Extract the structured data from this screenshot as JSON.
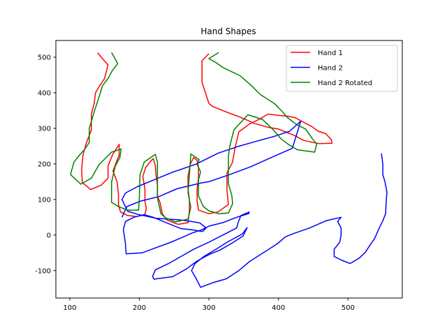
{
  "chart_data": {
    "type": "line",
    "title": "Hand Shapes",
    "xlabel": "",
    "ylabel": "",
    "xlim": [
      80,
      578
    ],
    "ylim": [
      -177,
      547
    ],
    "xticks": [
      100,
      200,
      300,
      400,
      500
    ],
    "yticks": [
      -100,
      0,
      100,
      200,
      300,
      400,
      500
    ],
    "grid": false,
    "legend_position": "upper right",
    "series": [
      {
        "name": "Hand 1",
        "color": "#ff0000",
        "points": [
          [
            140,
            512
          ],
          [
            155,
            478
          ],
          [
            150,
            440
          ],
          [
            143,
            420
          ],
          [
            137,
            400
          ],
          [
            135,
            370
          ],
          [
            131,
            340
          ],
          [
            131,
            295
          ],
          [
            124,
            260
          ],
          [
            119,
            225
          ],
          [
            117,
            185
          ],
          [
            118,
            148
          ],
          [
            130,
            128
          ],
          [
            145,
            140
          ],
          [
            155,
            160
          ],
          [
            155,
            195
          ],
          [
            162,
            228
          ],
          [
            166,
            240
          ],
          [
            171,
            255
          ],
          [
            171,
            225
          ],
          [
            168,
            210
          ],
          [
            162,
            180
          ],
          [
            168,
            150
          ],
          [
            170,
            115
          ],
          [
            170,
            85
          ],
          [
            173,
            65
          ],
          [
            183,
            55
          ],
          [
            196,
            52
          ],
          [
            208,
            58
          ],
          [
            210,
            75
          ],
          [
            208,
            95
          ],
          [
            208,
            130
          ],
          [
            205,
            165
          ],
          [
            209,
            190
          ],
          [
            215,
            205
          ],
          [
            220,
            215
          ],
          [
            223,
            195
          ],
          [
            224,
            170
          ],
          [
            226,
            140
          ],
          [
            226,
            110
          ],
          [
            230,
            90
          ],
          [
            233,
            60
          ],
          [
            240,
            42
          ],
          [
            256,
            30
          ],
          [
            270,
            35
          ],
          [
            272,
            70
          ],
          [
            272,
            100
          ],
          [
            270,
            130
          ],
          [
            270,
            165
          ],
          [
            273,
            198
          ],
          [
            278,
            218
          ],
          [
            283,
            210
          ],
          [
            285,
            190
          ],
          [
            285,
            160
          ],
          [
            283,
            130
          ],
          [
            283,
            95
          ],
          [
            285,
            70
          ],
          [
            300,
            60
          ],
          [
            313,
            65
          ],
          [
            328,
            86
          ],
          [
            326,
            125
          ],
          [
            326,
            175
          ],
          [
            334,
            205
          ],
          [
            337,
            240
          ],
          [
            343,
            290
          ],
          [
            358,
            312
          ],
          [
            372,
            325
          ],
          [
            385,
            340
          ],
          [
            402,
            336
          ],
          [
            414,
            334
          ],
          [
            424,
            330
          ],
          [
            436,
            317
          ],
          [
            448,
            305
          ],
          [
            457,
            292
          ],
          [
            468,
            285
          ],
          [
            476,
            268
          ],
          [
            477,
            258
          ],
          [
            458,
            257
          ],
          [
            436,
            266
          ],
          [
            423,
            280
          ],
          [
            410,
            290
          ],
          [
            400,
            298
          ],
          [
            385,
            303
          ],
          [
            365,
            314
          ],
          [
            355,
            323
          ],
          [
            343,
            333
          ],
          [
            333,
            340
          ],
          [
            320,
            350
          ],
          [
            305,
            362
          ],
          [
            300,
            370
          ],
          [
            295,
            400
          ],
          [
            290,
            430
          ],
          [
            290,
            460
          ],
          [
            290,
            490
          ],
          [
            300,
            510
          ]
        ]
      },
      {
        "name": "Hand 2",
        "color": "#0000ff",
        "points": [
          [
            175,
            50
          ],
          [
            182,
            80
          ],
          [
            201,
            95
          ],
          [
            228,
            108
          ],
          [
            254,
            130
          ],
          [
            288,
            146
          ],
          [
            300,
            150
          ],
          [
            330,
            170
          ],
          [
            360,
            192
          ],
          [
            392,
            220
          ],
          [
            420,
            244
          ],
          [
            432,
            320
          ],
          [
            416,
            292
          ],
          [
            395,
            278
          ],
          [
            365,
            262
          ],
          [
            340,
            248
          ],
          [
            313,
            230
          ],
          [
            282,
            200
          ],
          [
            247,
            176
          ],
          [
            222,
            156
          ],
          [
            197,
            136
          ],
          [
            180,
            118
          ],
          [
            175,
            100
          ],
          [
            183,
            67
          ],
          [
            198,
            58
          ],
          [
            224,
            47
          ],
          [
            257,
            43
          ],
          [
            275,
            38
          ],
          [
            287,
            34
          ],
          [
            296,
            20
          ],
          [
            291,
            10
          ],
          [
            275,
            15
          ],
          [
            260,
            18
          ],
          [
            237,
            36
          ],
          [
            220,
            50
          ],
          [
            207,
            57
          ],
          [
            192,
            50
          ],
          [
            180,
            38
          ],
          [
            177,
            15
          ],
          [
            179,
            -10
          ],
          [
            180,
            -25
          ],
          [
            181,
            -53
          ],
          [
            204,
            -50
          ],
          [
            222,
            -37
          ],
          [
            243,
            -22
          ],
          [
            260,
            -8
          ],
          [
            275,
            5
          ],
          [
            290,
            15
          ],
          [
            300,
            25
          ],
          [
            320,
            35
          ],
          [
            340,
            50
          ],
          [
            357,
            60
          ],
          [
            358,
            65
          ],
          [
            346,
            55
          ],
          [
            342,
            35
          ],
          [
            340,
            20
          ],
          [
            320,
            0
          ],
          [
            300,
            -20
          ],
          [
            278,
            -40
          ],
          [
            260,
            -60
          ],
          [
            242,
            -80
          ],
          [
            223,
            -98
          ],
          [
            219,
            -117
          ],
          [
            221,
            -124
          ],
          [
            248,
            -117
          ],
          [
            268,
            -95
          ],
          [
            283,
            -73
          ],
          [
            300,
            -55
          ],
          [
            316,
            -42
          ],
          [
            333,
            -23
          ],
          [
            349,
            -3
          ],
          [
            355,
            21
          ],
          [
            348,
            3
          ],
          [
            328,
            -18
          ],
          [
            310,
            -40
          ],
          [
            293,
            -60
          ],
          [
            280,
            -80
          ],
          [
            275,
            -100
          ],
          [
            281,
            -120
          ],
          [
            288,
            -147
          ],
          [
            307,
            -133
          ],
          [
            325,
            -123
          ],
          [
            343,
            -100
          ],
          [
            358,
            -75
          ],
          [
            378,
            -50
          ],
          [
            398,
            -25
          ],
          [
            410,
            -5
          ],
          [
            423,
            5
          ],
          [
            445,
            20
          ],
          [
            468,
            40
          ],
          [
            490,
            50
          ],
          [
            485,
            38
          ],
          [
            490,
            20
          ],
          [
            490,
            0
          ],
          [
            488,
            -20
          ],
          [
            480,
            -40
          ],
          [
            480,
            -60
          ],
          [
            490,
            -70
          ],
          [
            503,
            -80
          ],
          [
            516,
            -65
          ],
          [
            525,
            -48
          ],
          [
            531,
            -30
          ],
          [
            538,
            -10
          ],
          [
            545,
            20
          ],
          [
            550,
            40
          ],
          [
            554,
            60
          ],
          [
            555,
            100
          ],
          [
            556,
            120
          ],
          [
            553,
            150
          ],
          [
            550,
            170
          ],
          [
            550,
            200
          ],
          [
            548,
            230
          ]
        ]
      },
      {
        "name": "Hand 2 Rotated",
        "color": "#008000",
        "points": [
          [
            160,
            513
          ],
          [
            169,
            482
          ],
          [
            161,
            462
          ],
          [
            155,
            440
          ],
          [
            147,
            420
          ],
          [
            144,
            400
          ],
          [
            139,
            370
          ],
          [
            134,
            340
          ],
          [
            128,
            300
          ],
          [
            128,
            260
          ],
          [
            121,
            240
          ],
          [
            114,
            225
          ],
          [
            106,
            205
          ],
          [
            101,
            170
          ],
          [
            116,
            143
          ],
          [
            131,
            160
          ],
          [
            142,
            198
          ],
          [
            160,
            233
          ],
          [
            174,
            242
          ],
          [
            172,
            218
          ],
          [
            165,
            192
          ],
          [
            160,
            148
          ],
          [
            160,
            92
          ],
          [
            170,
            80
          ],
          [
            183,
            70
          ],
          [
            199,
            70
          ],
          [
            200,
            105
          ],
          [
            201,
            170
          ],
          [
            207,
            205
          ],
          [
            223,
            227
          ],
          [
            226,
            205
          ],
          [
            226,
            172
          ],
          [
            226,
            135
          ],
          [
            226,
            105
          ],
          [
            231,
            60
          ],
          [
            238,
            48
          ],
          [
            252,
            37
          ],
          [
            270,
            45
          ],
          [
            274,
            78
          ],
          [
            270,
            120
          ],
          [
            272,
            170
          ],
          [
            274,
            228
          ],
          [
            286,
            212
          ],
          [
            283,
            198
          ],
          [
            288,
            178
          ],
          [
            285,
            155
          ],
          [
            285,
            110
          ],
          [
            292,
            80
          ],
          [
            300,
            68
          ],
          [
            314,
            60
          ],
          [
            328,
            62
          ],
          [
            334,
            88
          ],
          [
            333,
            110
          ],
          [
            328,
            145
          ],
          [
            328,
            220
          ],
          [
            330,
            250
          ],
          [
            336,
            296
          ],
          [
            356,
            338
          ],
          [
            377,
            325
          ],
          [
            392,
            297
          ],
          [
            404,
            270
          ],
          [
            414,
            255
          ],
          [
            427,
            240
          ],
          [
            452,
            233
          ],
          [
            455,
            256
          ],
          [
            449,
            270
          ],
          [
            439,
            298
          ],
          [
            425,
            312
          ],
          [
            413,
            330
          ],
          [
            405,
            348
          ],
          [
            394,
            370
          ],
          [
            374,
            395
          ],
          [
            361,
            420
          ],
          [
            345,
            448
          ],
          [
            321,
            470
          ],
          [
            310,
            485
          ],
          [
            300,
            496
          ],
          [
            314,
            513
          ]
        ]
      }
    ]
  }
}
